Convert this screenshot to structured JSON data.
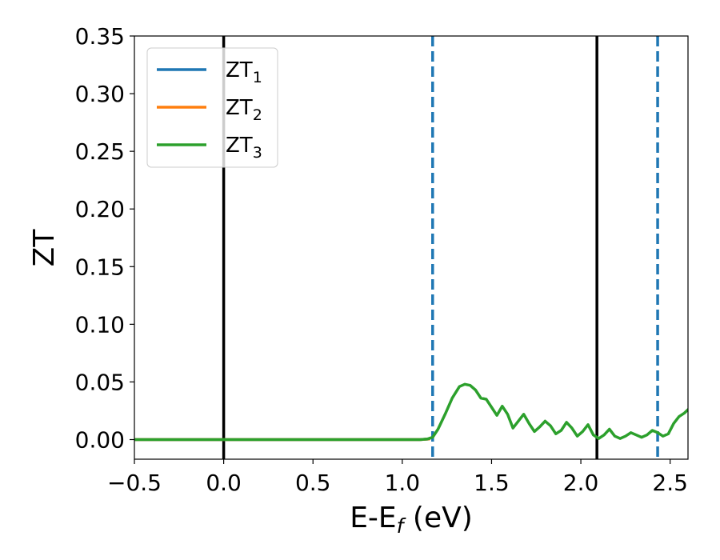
{
  "chart_data": {
    "type": "line",
    "xlabel": "E-E",
    "xlabel_sub": "f",
    "xlabel_unit": " (eV)",
    "ylabel": "ZT",
    "xlim": [
      -0.5,
      2.6
    ],
    "ylim": [
      -0.017,
      0.35
    ],
    "xticks": [
      -0.5,
      0.0,
      0.5,
      1.0,
      1.5,
      2.0,
      2.5
    ],
    "xtick_labels": [
      "−0.5",
      "0.0",
      "0.5",
      "1.0",
      "1.5",
      "2.0",
      "2.5"
    ],
    "yticks": [
      0.0,
      0.05,
      0.1,
      0.15,
      0.2,
      0.25,
      0.3,
      0.35
    ],
    "ytick_labels": [
      "0.00",
      "0.05",
      "0.10",
      "0.15",
      "0.20",
      "0.25",
      "0.30",
      "0.35"
    ],
    "legend_position": "upper left",
    "vlines": [
      {
        "x": 0.0,
        "style": "solid",
        "color": "#000000"
      },
      {
        "x": 2.09,
        "style": "solid",
        "color": "#000000"
      },
      {
        "x": 1.17,
        "style": "dashed",
        "color": "#1f77b4"
      },
      {
        "x": 2.43,
        "style": "dashed",
        "color": "#1f77b4"
      }
    ],
    "series": [
      {
        "name": "ZT",
        "sub": "1",
        "color": "#1f77b4",
        "x": [
          -0.5,
          1.0,
          1.1,
          1.15
        ],
        "y": [
          0,
          0,
          0,
          0.0005
        ]
      },
      {
        "name": "ZT",
        "sub": "2",
        "color": "#ff7f0e",
        "x": [
          -0.5,
          1.0,
          1.1,
          1.15
        ],
        "y": [
          0,
          0,
          0,
          0.0005
        ]
      },
      {
        "name": "ZT",
        "sub": "3",
        "color": "#2ca02c",
        "x": [
          -0.5,
          0.0,
          0.5,
          1.0,
          1.1,
          1.14,
          1.17,
          1.2,
          1.24,
          1.28,
          1.32,
          1.35,
          1.38,
          1.41,
          1.44,
          1.47,
          1.5,
          1.53,
          1.56,
          1.59,
          1.62,
          1.65,
          1.68,
          1.71,
          1.74,
          1.77,
          1.8,
          1.83,
          1.86,
          1.89,
          1.92,
          1.95,
          1.98,
          2.01,
          2.04,
          2.07,
          2.1,
          2.13,
          2.16,
          2.19,
          2.22,
          2.25,
          2.28,
          2.31,
          2.34,
          2.37,
          2.4,
          2.43,
          2.46,
          2.49,
          2.52,
          2.55,
          2.58,
          2.6
        ],
        "y": [
          0.0,
          0.0,
          0.0,
          0.0,
          0.0,
          0.0005,
          0.002,
          0.009,
          0.022,
          0.036,
          0.046,
          0.048,
          0.047,
          0.043,
          0.036,
          0.035,
          0.028,
          0.021,
          0.029,
          0.022,
          0.01,
          0.016,
          0.022,
          0.014,
          0.007,
          0.011,
          0.016,
          0.012,
          0.005,
          0.008,
          0.015,
          0.01,
          0.003,
          0.007,
          0.013,
          0.004,
          0.001,
          0.004,
          0.009,
          0.003,
          0.001,
          0.003,
          0.006,
          0.004,
          0.002,
          0.004,
          0.008,
          0.006,
          0.003,
          0.005,
          0.014,
          0.02,
          0.023,
          0.026
        ]
      }
    ]
  }
}
